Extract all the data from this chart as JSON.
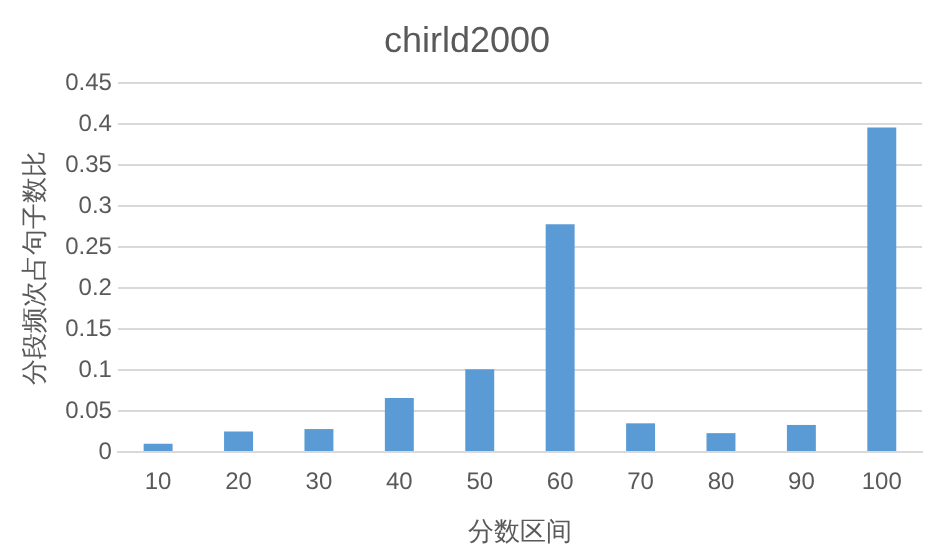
{
  "chart_data": {
    "type": "bar",
    "title": "chirld2000",
    "xlabel": "分数区间",
    "ylabel": "分段频次占句子数比",
    "categories": [
      "10",
      "20",
      "30",
      "40",
      "50",
      "60",
      "70",
      "80",
      "90",
      "100"
    ],
    "values": [
      0.01,
      0.025,
      0.028,
      0.066,
      0.101,
      0.278,
      0.035,
      0.023,
      0.033,
      0.396
    ],
    "color": "#5b9bd5",
    "ylim": [
      0,
      0.45
    ],
    "yticks": [
      0,
      0.05,
      0.1,
      0.15,
      0.2,
      0.25,
      0.3,
      0.35,
      0.4,
      0.45
    ],
    "grid": "y",
    "legend": false
  }
}
